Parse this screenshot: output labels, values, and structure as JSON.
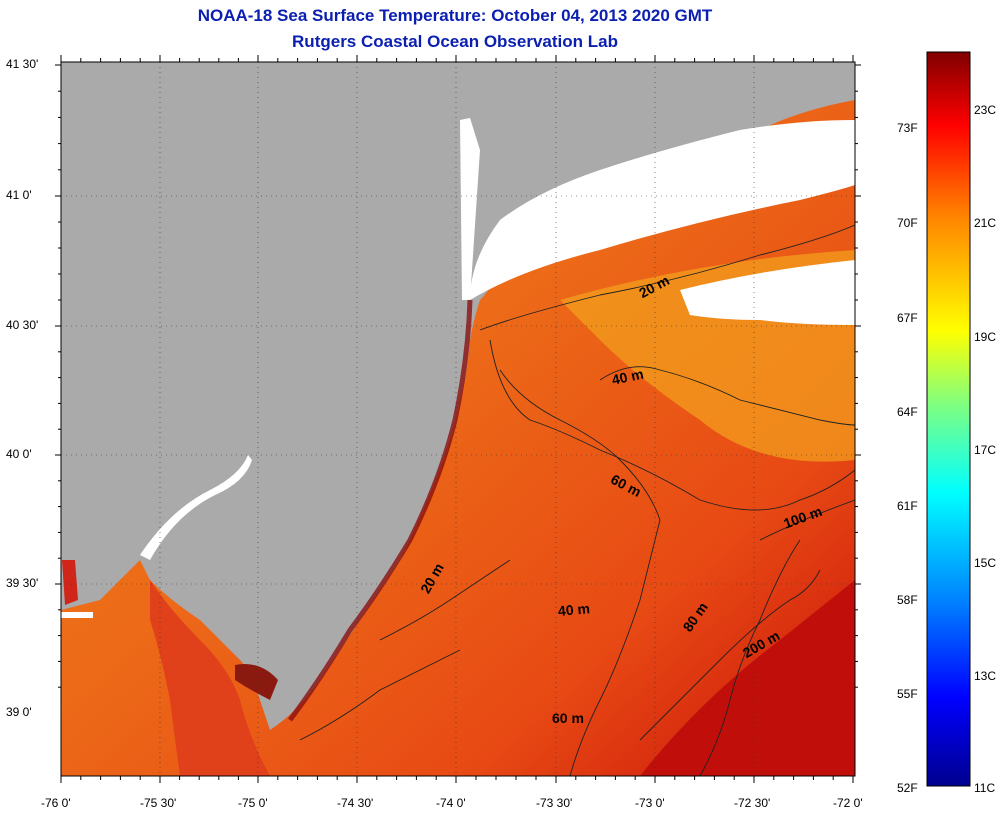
{
  "title": {
    "line1": "NOAA-18 Sea Surface Temperature:  October 04, 2013 2020 GMT",
    "line2": "Rutgers Coastal Ocean Observation Lab"
  },
  "map": {
    "latitude_labels": [
      "41 30'",
      "41 0'",
      "40 30'",
      "40 0'",
      "39 30'",
      "39 0'"
    ],
    "longitude_labels": [
      "-76 0'",
      "-75 30'",
      "-75 0'",
      "-74 30'",
      "-74 0'",
      "-73 30'",
      "-73 0'",
      "-72 30'",
      "-72 0'"
    ],
    "contour_labels": [
      "20 m",
      "40 m",
      "60 m",
      "20 m",
      "40 m",
      "100 m",
      "80 m",
      "200 m",
      "60 m"
    ],
    "colors": {
      "land": "#aaaaaa",
      "cloud": "#ffffff",
      "water_warm": "#e8501a",
      "water_cool": "#f08c1e"
    }
  },
  "colorbar": {
    "fahrenheit_labels": [
      "73F",
      "70F",
      "67F",
      "64F",
      "61F",
      "58F",
      "55F",
      "52F"
    ],
    "celsius_labels": [
      "23C",
      "21C",
      "19C",
      "17C",
      "15C",
      "13C",
      "11C"
    ],
    "colors": [
      "#00008f",
      "#0000ff",
      "#0080ff",
      "#00ffff",
      "#80ff80",
      "#ffff00",
      "#ff8000",
      "#ff0000",
      "#800000"
    ]
  }
}
